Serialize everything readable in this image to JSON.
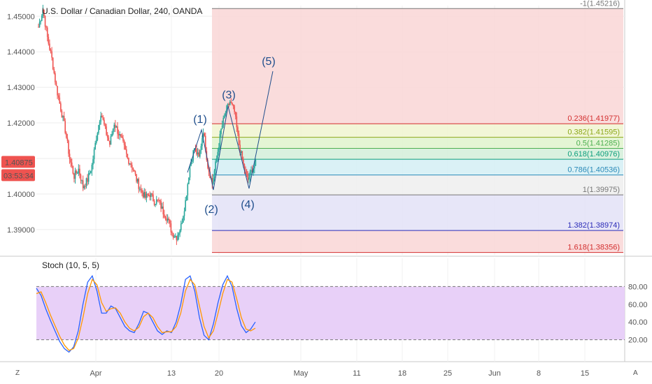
{
  "chart_data": [
    {
      "type": "candlestick",
      "title": "U.S. Dollar / Canadian Dollar, 240, OANDA",
      "y_ticks": [
        "1.45000",
        "1.44000",
        "1.43000",
        "1.42000",
        "1.41000",
        "1.40000",
        "1.39000"
      ],
      "y_range": [
        1.3825,
        1.453
      ],
      "x_ticks": [
        "Apr",
        "13",
        "20",
        "May",
        "11",
        "18",
        "25",
        "Jun",
        "8",
        "15"
      ],
      "price_label": "1.40875",
      "countdown_label": "03:53:34",
      "colors": {
        "up": "#26a69a",
        "down": "#ef5350",
        "wave": "#1f4e8c"
      },
      "wave_labels": [
        "(1)",
        "(2)",
        "(3)",
        "(4)",
        "(5)"
      ],
      "close_path": [
        1.447,
        1.452,
        1.444,
        1.438,
        1.43,
        1.424,
        1.418,
        1.41,
        1.405,
        1.407,
        1.402,
        1.404,
        1.408,
        1.416,
        1.423,
        1.418,
        1.414,
        1.42,
        1.417,
        1.414,
        1.41,
        1.408,
        1.404,
        1.401,
        1.399,
        1.4,
        1.398,
        1.398,
        1.395,
        1.393,
        1.389,
        1.388,
        1.391,
        1.398,
        1.408,
        1.413,
        1.41,
        1.418,
        1.408,
        1.403,
        1.41,
        1.418,
        1.423,
        1.426,
        1.423,
        1.414,
        1.408,
        1.404,
        1.407,
        1.409
      ],
      "fib_levels": [
        {
          "label": "-1(1.45216)",
          "value": 1.45216,
          "color": "#777777",
          "fill": "#f9d6d6"
        },
        {
          "label": "0.236(1.41977)",
          "value": 1.41977,
          "color": "#d32f2f",
          "fill": "#f0f5d0"
        },
        {
          "label": "0.382(1.41595)",
          "value": 1.41595,
          "color": "#8ca81a",
          "fill": "#dff3cc"
        },
        {
          "label": "0.5(1.41285)",
          "value": 1.41285,
          "color": "#4caf50",
          "fill": "#d4efd9"
        },
        {
          "label": "0.618(1.40976)",
          "value": 1.40976,
          "color": "#0d9e7c",
          "fill": "#d4eef4"
        },
        {
          "label": "0.786(1.40536)",
          "value": 1.40536,
          "color": "#2b8ab8",
          "fill": "#eeeeee"
        },
        {
          "label": "1(1.39975)",
          "value": 1.39975,
          "color": "#777777",
          "fill": "#e3e2f7"
        },
        {
          "label": "1.382(1.38974)",
          "value": 1.38974,
          "color": "#2b2bb8",
          "fill": "#f9d6d6"
        },
        {
          "label": "1.618(1.38356)",
          "value": 1.38356,
          "color": "#d32f2f",
          "fill": null
        }
      ]
    },
    {
      "type": "line",
      "title": "Stoch (10, 5, 5)",
      "y_ticks": [
        "80.00",
        "60.00",
        "40.00",
        "20.00"
      ],
      "y_range": [
        0,
        100
      ],
      "band": [
        20,
        80
      ],
      "series": [
        {
          "color": "#2962ff",
          "values": [
            78,
            70,
            55,
            42,
            30,
            18,
            10,
            6,
            12,
            30,
            60,
            85,
            92,
            75,
            50,
            50,
            58,
            55,
            45,
            35,
            30,
            28,
            38,
            52,
            50,
            40,
            30,
            26,
            30,
            28,
            40,
            60,
            88,
            92,
            75,
            45,
            25,
            20,
            38,
            62,
            82,
            92,
            80,
            55,
            36,
            28,
            32,
            40
          ]
        },
        {
          "color": "#ff9800",
          "values": [
            72,
            74,
            62,
            48,
            36,
            24,
            14,
            8,
            10,
            22,
            45,
            72,
            88,
            82,
            62,
            52,
            55,
            56,
            50,
            40,
            33,
            30,
            34,
            46,
            50,
            45,
            35,
            28,
            29,
            29,
            35,
            50,
            75,
            88,
            82,
            58,
            35,
            22,
            30,
            50,
            72,
            88,
            85,
            66,
            45,
            32,
            30,
            33
          ]
        }
      ]
    }
  ],
  "bottom_bar": {
    "left_label": "Z",
    "right_label": "A"
  }
}
